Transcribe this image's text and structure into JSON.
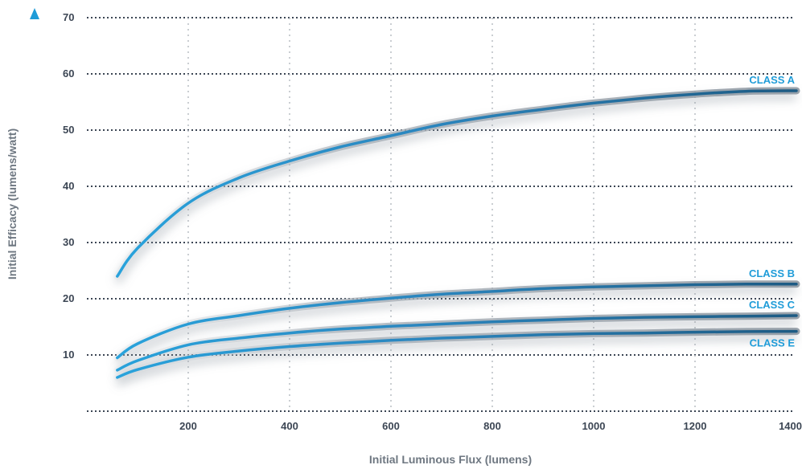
{
  "chart_data": {
    "type": "line",
    "title": "",
    "xlabel": "Initial Luminous Flux (lumens)",
    "ylabel": "Initial Efficacy (lumens/watt)",
    "xlim": [
      0,
      1400
    ],
    "ylim": [
      0,
      70
    ],
    "x_ticks": [
      200,
      400,
      600,
      800,
      1000,
      1200,
      1400
    ],
    "x_tick_labels": [
      "200",
      "400",
      "600",
      "800",
      "1000",
      "1200",
      "1400"
    ],
    "y_ticks": [
      10,
      20,
      30,
      40,
      50,
      60,
      70
    ],
    "y_tick_labels": [
      "10",
      "20",
      "30",
      "40",
      "50",
      "60",
      "70"
    ],
    "grid": {
      "horizontal": "dotted",
      "vertical": "dotted"
    },
    "legend": "none",
    "colors": {
      "line_light": "#29a3dc",
      "line_mid": "#2a86bf",
      "line_dark": "#1d5b84",
      "label": "#1f9cd8",
      "axis_arrow": "#1f9cd8",
      "tick": "#3c4654",
      "axis_title": "#6e7781",
      "grid": "#b9bec4"
    },
    "series": [
      {
        "name": "CLASS A",
        "x": [
          60,
          100,
          200,
          300,
          400,
          500,
          600,
          700,
          800,
          900,
          1000,
          1100,
          1200,
          1300,
          1400
        ],
        "values": [
          24,
          29,
          37,
          41.5,
          44.5,
          47,
          49,
          51,
          52.5,
          53.7,
          54.8,
          55.7,
          56.4,
          56.9,
          57
        ]
      },
      {
        "name": "CLASS B",
        "x": [
          60,
          100,
          200,
          300,
          400,
          500,
          600,
          700,
          800,
          900,
          1000,
          1100,
          1200,
          1300,
          1400
        ],
        "values": [
          9.5,
          12,
          15.5,
          17,
          18.3,
          19.3,
          20.1,
          20.8,
          21.3,
          21.8,
          22.1,
          22.3,
          22.5,
          22.6,
          22.6
        ]
      },
      {
        "name": "CLASS C",
        "x": [
          60,
          100,
          200,
          300,
          400,
          500,
          600,
          700,
          800,
          900,
          1000,
          1100,
          1200,
          1300,
          1400
        ],
        "values": [
          7.3,
          9,
          11.8,
          13,
          13.9,
          14.6,
          15.1,
          15.5,
          15.9,
          16.2,
          16.5,
          16.7,
          16.8,
          16.9,
          17
        ]
      },
      {
        "name": "CLASS E",
        "x": [
          60,
          100,
          200,
          300,
          400,
          500,
          600,
          700,
          800,
          900,
          1000,
          1100,
          1200,
          1300,
          1400
        ],
        "values": [
          6,
          7.4,
          9.6,
          10.7,
          11.5,
          12.1,
          12.6,
          13,
          13.3,
          13.6,
          13.8,
          13.9,
          14.05,
          14.15,
          14.2
        ]
      }
    ]
  }
}
